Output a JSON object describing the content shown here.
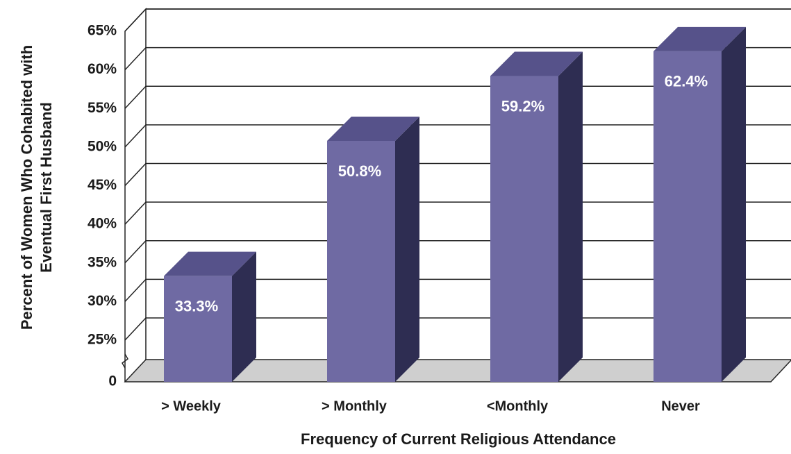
{
  "chart_data": {
    "type": "bar3d",
    "xlabel": "Frequency of Current Religious Attendance",
    "ylabel": [
      "Percent of Women Who Cohabited with",
      "Eventual First Husband"
    ],
    "categories": [
      "> Weekly",
      "> Monthly",
      "<Monthly",
      "Never"
    ],
    "values": [
      33.3,
      50.8,
      59.2,
      62.4
    ],
    "value_labels": [
      "33.3%",
      "50.8%",
      "59.2%",
      "62.4%"
    ],
    "color": "#6f6aa3",
    "ylim": [
      0,
      65
    ],
    "yticks": [
      0,
      {
        "value": 25,
        "label": "25%"
      },
      {
        "value": 30,
        "label": "30%"
      },
      {
        "value": 35,
        "label": "35%"
      },
      {
        "value": 40,
        "label": "40%"
      },
      {
        "value": 45,
        "label": "45%"
      },
      {
        "value": 50,
        "label": "50%"
      },
      {
        "value": 55,
        "label": "55%"
      },
      {
        "value": 60,
        "label": "60%"
      },
      {
        "value": 65,
        "label": "65%"
      }
    ],
    "axis_break": true,
    "grid": true
  }
}
